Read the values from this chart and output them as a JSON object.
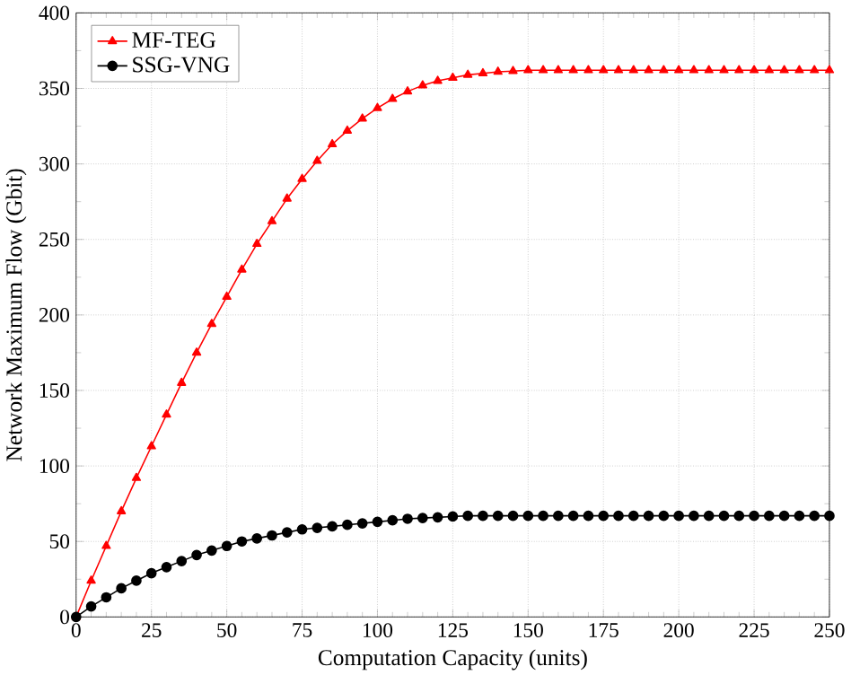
{
  "chart_data": {
    "type": "line",
    "xlabel": "Computation Capacity (units)",
    "ylabel": "Network Maximum Flow (Gbit)",
    "x": [
      0,
      5,
      10,
      15,
      20,
      25,
      30,
      35,
      40,
      45,
      50,
      55,
      60,
      65,
      70,
      75,
      80,
      85,
      90,
      95,
      100,
      105,
      110,
      115,
      120,
      125,
      130,
      135,
      140,
      145,
      150,
      155,
      160,
      165,
      170,
      175,
      180,
      185,
      190,
      195,
      200,
      205,
      210,
      215,
      220,
      225,
      230,
      235,
      240,
      245,
      250
    ],
    "series": [
      {
        "name": "MF-TEG",
        "color": "#ff0000",
        "marker": "triangle",
        "values": [
          0,
          24,
          47,
          70,
          92,
          113,
          134,
          155,
          175,
          194,
          212,
          230,
          247,
          262,
          277,
          290,
          302,
          313,
          322,
          330,
          337,
          343,
          348,
          352,
          355,
          357,
          359,
          360,
          361,
          361.5,
          362,
          362,
          362,
          362,
          362,
          362,
          362,
          362,
          362,
          362,
          362,
          362,
          362,
          362,
          362,
          362,
          362,
          362,
          362,
          362,
          362
        ]
      },
      {
        "name": "SSG-VNG",
        "color": "#000000",
        "marker": "circle",
        "values": [
          0,
          7,
          13,
          19,
          24,
          29,
          33,
          37,
          41,
          44,
          47,
          50,
          52,
          54,
          56,
          58,
          59,
          60,
          61,
          62,
          63,
          64,
          65,
          65.5,
          66,
          66.5,
          67,
          67,
          67,
          67,
          67,
          67,
          67,
          67,
          67,
          67,
          67,
          67,
          67,
          67,
          67,
          67,
          67,
          67,
          67,
          67,
          67,
          67,
          67,
          67,
          67
        ]
      }
    ],
    "xlim": [
      0,
      250
    ],
    "ylim": [
      0,
      400
    ],
    "xticks": [
      0,
      25,
      50,
      75,
      100,
      125,
      150,
      175,
      200,
      225,
      250
    ],
    "yticks": [
      0,
      50,
      100,
      150,
      200,
      250,
      300,
      350,
      400
    ],
    "grid": true,
    "legend": "top left",
    "line_style": "solid"
  }
}
